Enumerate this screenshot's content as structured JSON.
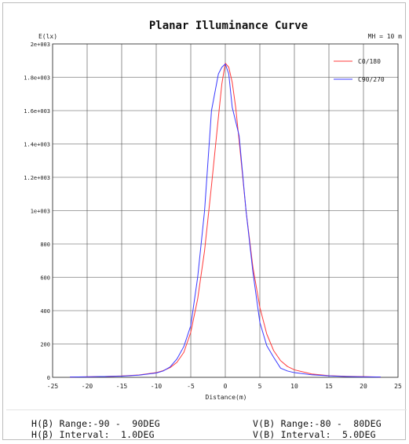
{
  "chart_data": {
    "type": "line",
    "title": "Planar Illuminance Curve",
    "ylabel": "E(lx)",
    "xlabel": "Distance(m)",
    "annotation": "MH = 10 m",
    "xlim": [
      -25,
      25
    ],
    "ylim": [
      0,
      2000
    ],
    "grid": true,
    "legend_position": "top-right",
    "x_ticks": [
      "-25",
      "-20",
      "-15",
      "-10",
      "-5",
      "0",
      "5",
      "10",
      "15",
      "20",
      "25"
    ],
    "y_ticks": [
      "0",
      "200",
      "400",
      "600",
      "800",
      "1e+003",
      "1.2e+003",
      "1.4e+003",
      "1.6e+003",
      "1.8e+003",
      "2e+003"
    ],
    "series": [
      {
        "name": "C0/180",
        "color": "#ff3b3b",
        "points": [
          [
            -22.5,
            2
          ],
          [
            -20,
            3
          ],
          [
            -17.5,
            5
          ],
          [
            -15,
            8
          ],
          [
            -12.5,
            14
          ],
          [
            -10,
            28
          ],
          [
            -9,
            40
          ],
          [
            -8,
            58
          ],
          [
            -7,
            90
          ],
          [
            -6,
            150
          ],
          [
            -5,
            270
          ],
          [
            -4,
            470
          ],
          [
            -3,
            760
          ],
          [
            -2,
            1150
          ],
          [
            -1,
            1560
          ],
          [
            -0.5,
            1760
          ],
          [
            0,
            1885
          ],
          [
            0.5,
            1860
          ],
          [
            1,
            1770
          ],
          [
            1.5,
            1620
          ],
          [
            2,
            1420
          ],
          [
            3,
            1000
          ],
          [
            4,
            660
          ],
          [
            5,
            420
          ],
          [
            6,
            260
          ],
          [
            7,
            160
          ],
          [
            8,
            100
          ],
          [
            9,
            65
          ],
          [
            10,
            45
          ],
          [
            12.5,
            20
          ],
          [
            15,
            10
          ],
          [
            17.5,
            6
          ],
          [
            20,
            4
          ],
          [
            22.5,
            2
          ]
        ]
      },
      {
        "name": "C90/270",
        "color": "#3a3aff",
        "points": [
          [
            -22.5,
            2
          ],
          [
            -20,
            3
          ],
          [
            -17.5,
            5
          ],
          [
            -15,
            7
          ],
          [
            -12.5,
            13
          ],
          [
            -10,
            26
          ],
          [
            -9,
            38
          ],
          [
            -8,
            62
          ],
          [
            -7,
            110
          ],
          [
            -6,
            185
          ],
          [
            -5,
            310
          ],
          [
            -4,
            600
          ],
          [
            -3,
            1000
          ],
          [
            -2,
            1600
          ],
          [
            -1,
            1820
          ],
          [
            -0.5,
            1860
          ],
          [
            0,
            1880
          ],
          [
            0.5,
            1820
          ],
          [
            1,
            1620
          ],
          [
            2,
            1450
          ],
          [
            3,
            1000
          ],
          [
            4,
            630
          ],
          [
            5,
            330
          ],
          [
            6,
            190
          ],
          [
            7,
            120
          ],
          [
            8,
            55
          ],
          [
            9,
            38
          ],
          [
            10,
            28
          ],
          [
            12.5,
            15
          ],
          [
            15,
            9
          ],
          [
            17.5,
            5
          ],
          [
            20,
            3
          ],
          [
            22.5,
            2
          ]
        ]
      }
    ]
  },
  "footer": {
    "h_range": "H(β) Range:-90 -  90DEG",
    "h_interval": "H(β) Interval:  1.0DEG",
    "v_range": "V(B) Range:-80 -  80DEG",
    "v_interval": "V(B) Interval:  5.0DEG"
  }
}
